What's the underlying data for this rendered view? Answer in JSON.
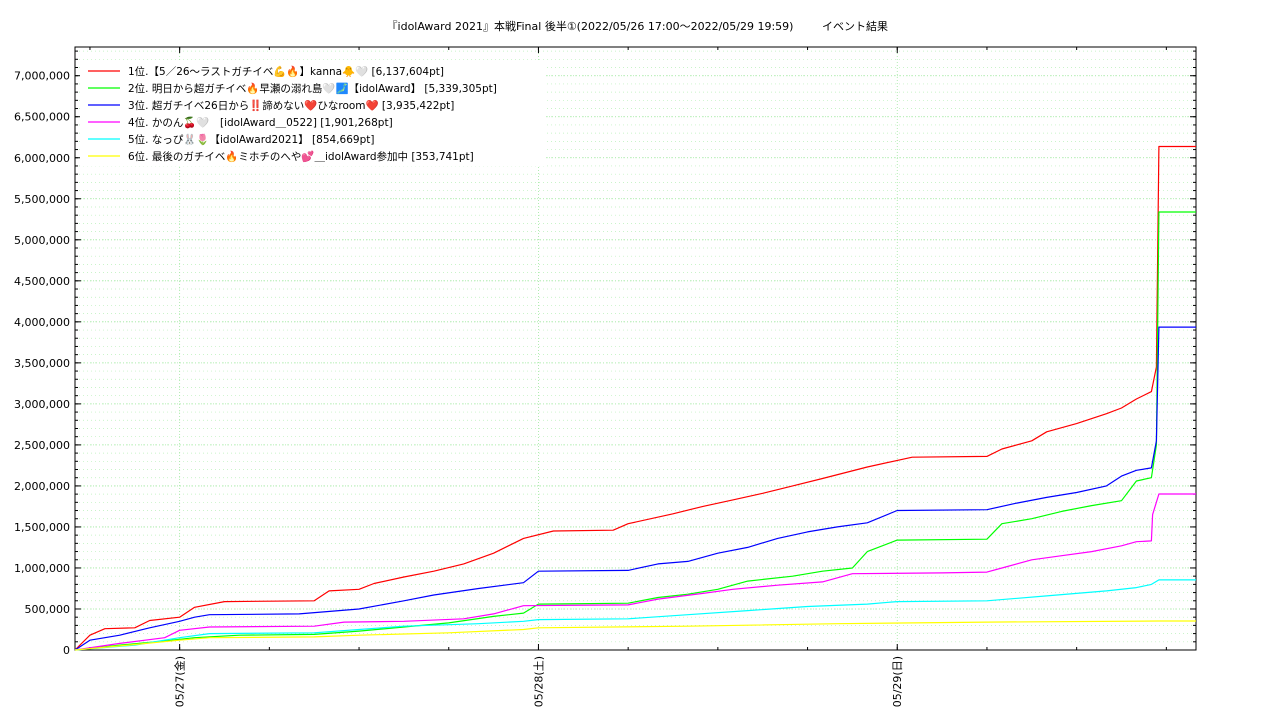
{
  "chart_data": {
    "type": "line",
    "title": "『idolAward 2021』本戦Final 後半①(2022/05/26 17:00～2022/05/29 19:59)",
    "subtitle": "イベント結果",
    "x_range": [
      "2022-05-26 17:00",
      "2022-05-29 19:59"
    ],
    "x_ticks": [
      {
        "t": "2022-05-27 00:00",
        "label": "05/27(金)"
      },
      {
        "t": "2022-05-28 00:00",
        "label": "05/28(土)"
      },
      {
        "t": "2022-05-29 00:00",
        "label": "05/29(日)"
      }
    ],
    "ylim": [
      0,
      7350000
    ],
    "y_ticks": [
      {
        "v": 0,
        "label": "0"
      },
      {
        "v": 500000,
        "label": "500,000"
      },
      {
        "v": 1000000,
        "label": "1,000,000"
      },
      {
        "v": 1500000,
        "label": "1,500,000"
      },
      {
        "v": 2000000,
        "label": "2,000,000"
      },
      {
        "v": 2500000,
        "label": "2,500,000"
      },
      {
        "v": 3000000,
        "label": "3,000,000"
      },
      {
        "v": 3500000,
        "label": "3,500,000"
      },
      {
        "v": 4000000,
        "label": "4,000,000"
      },
      {
        "v": 4500000,
        "label": "4,500,000"
      },
      {
        "v": 5000000,
        "label": "5,000,000"
      },
      {
        "v": 5500000,
        "label": "5,500,000"
      },
      {
        "v": 6000000,
        "label": "6,000,000"
      },
      {
        "v": 6500000,
        "label": "6,500,000"
      },
      {
        "v": 7000000,
        "label": "7,000,000"
      }
    ],
    "grid": true,
    "legend_position": "top-left",
    "series": [
      {
        "name": "1位.【5／26〜ラストガチイベ💪🔥】kanna🐥🤍 [6,137,604pt]",
        "color": "#ff0000",
        "points": [
          [
            "2022-05-26 17:00",
            0
          ],
          [
            "2022-05-26 18:00",
            180000
          ],
          [
            "2022-05-26 19:00",
            260000
          ],
          [
            "2022-05-26 21:00",
            270000
          ],
          [
            "2022-05-26 22:00",
            360000
          ],
          [
            "2022-05-27 00:00",
            400000
          ],
          [
            "2022-05-27 01:00",
            520000
          ],
          [
            "2022-05-27 03:00",
            590000
          ],
          [
            "2022-05-27 09:00",
            600000
          ],
          [
            "2022-05-27 10:00",
            720000
          ],
          [
            "2022-05-27 12:00",
            740000
          ],
          [
            "2022-05-27 13:00",
            810000
          ],
          [
            "2022-05-27 15:00",
            890000
          ],
          [
            "2022-05-27 17:00",
            960000
          ],
          [
            "2022-05-27 19:00",
            1050000
          ],
          [
            "2022-05-27 21:00",
            1180000
          ],
          [
            "2022-05-27 23:00",
            1360000
          ],
          [
            "2022-05-28 01:00",
            1450000
          ],
          [
            "2022-05-28 05:00",
            1460000
          ],
          [
            "2022-05-28 06:00",
            1540000
          ],
          [
            "2022-05-28 09:00",
            1660000
          ],
          [
            "2022-05-28 11:00",
            1750000
          ],
          [
            "2022-05-28 13:00",
            1830000
          ],
          [
            "2022-05-28 15:00",
            1910000
          ],
          [
            "2022-05-28 17:00",
            2000000
          ],
          [
            "2022-05-28 19:00",
            2090000
          ],
          [
            "2022-05-28 22:00",
            2230000
          ],
          [
            "2022-05-29 01:00",
            2350000
          ],
          [
            "2022-05-29 06:00",
            2360000
          ],
          [
            "2022-05-29 07:00",
            2450000
          ],
          [
            "2022-05-29 09:00",
            2550000
          ],
          [
            "2022-05-29 10:00",
            2660000
          ],
          [
            "2022-05-29 12:00",
            2760000
          ],
          [
            "2022-05-29 14:00",
            2880000
          ],
          [
            "2022-05-29 15:00",
            2950000
          ],
          [
            "2022-05-29 16:00",
            3060000
          ],
          [
            "2022-05-29 17:00",
            3150000
          ],
          [
            "2022-05-29 17:20",
            3450000
          ],
          [
            "2022-05-29 17:30",
            6137604
          ],
          [
            "2022-05-29 19:59",
            6137604
          ]
        ]
      },
      {
        "name": "2位. 明日から超ガチイベ🔥早瀬の溺れ島🤍🗾【idolAward】 [5,339,305pt]",
        "color": "#00ff00",
        "points": [
          [
            "2022-05-26 17:00",
            0
          ],
          [
            "2022-05-26 20:00",
            60000
          ],
          [
            "2022-05-26 23:00",
            110000
          ],
          [
            "2022-05-27 01:00",
            150000
          ],
          [
            "2022-05-27 04:00",
            180000
          ],
          [
            "2022-05-27 09:00",
            190000
          ],
          [
            "2022-05-27 12:00",
            230000
          ],
          [
            "2022-05-27 15:00",
            280000
          ],
          [
            "2022-05-27 18:00",
            330000
          ],
          [
            "2022-05-27 21:00",
            410000
          ],
          [
            "2022-05-27 23:00",
            450000
          ],
          [
            "2022-05-28 00:00",
            560000
          ],
          [
            "2022-05-28 06:00",
            570000
          ],
          [
            "2022-05-28 08:00",
            640000
          ],
          [
            "2022-05-28 10:00",
            680000
          ],
          [
            "2022-05-28 12:00",
            740000
          ],
          [
            "2022-05-28 14:00",
            840000
          ],
          [
            "2022-05-28 17:00",
            900000
          ],
          [
            "2022-05-28 19:00",
            960000
          ],
          [
            "2022-05-28 21:00",
            1000000
          ],
          [
            "2022-05-28 22:00",
            1200000
          ],
          [
            "2022-05-29 00:00",
            1340000
          ],
          [
            "2022-05-29 06:00",
            1350000
          ],
          [
            "2022-05-29 07:00",
            1540000
          ],
          [
            "2022-05-29 09:00",
            1600000
          ],
          [
            "2022-05-29 11:00",
            1690000
          ],
          [
            "2022-05-29 13:00",
            1760000
          ],
          [
            "2022-05-29 15:00",
            1820000
          ],
          [
            "2022-05-29 16:00",
            2060000
          ],
          [
            "2022-05-29 17:00",
            2100000
          ],
          [
            "2022-05-29 17:20",
            2500000
          ],
          [
            "2022-05-29 17:30",
            5339305
          ],
          [
            "2022-05-29 19:59",
            5339305
          ]
        ]
      },
      {
        "name": "3位. 超ガチイベ26日から‼️諦めない❤️ひなroom❤️ [3,935,422pt]",
        "color": "#0000ff",
        "points": [
          [
            "2022-05-26 17:00",
            0
          ],
          [
            "2022-05-26 18:00",
            120000
          ],
          [
            "2022-05-26 20:00",
            180000
          ],
          [
            "2022-05-26 22:00",
            270000
          ],
          [
            "2022-05-27 00:00",
            350000
          ],
          [
            "2022-05-27 01:00",
            400000
          ],
          [
            "2022-05-27 02:00",
            430000
          ],
          [
            "2022-05-27 08:00",
            440000
          ],
          [
            "2022-05-27 12:00",
            500000
          ],
          [
            "2022-05-27 15:00",
            600000
          ],
          [
            "2022-05-27 17:00",
            670000
          ],
          [
            "2022-05-27 20:00",
            750000
          ],
          [
            "2022-05-27 23:00",
            820000
          ],
          [
            "2022-05-28 00:00",
            960000
          ],
          [
            "2022-05-28 06:00",
            970000
          ],
          [
            "2022-05-28 08:00",
            1050000
          ],
          [
            "2022-05-28 10:00",
            1080000
          ],
          [
            "2022-05-28 12:00",
            1180000
          ],
          [
            "2022-05-28 14:00",
            1250000
          ],
          [
            "2022-05-28 16:00",
            1360000
          ],
          [
            "2022-05-28 18:00",
            1440000
          ],
          [
            "2022-05-28 20:00",
            1500000
          ],
          [
            "2022-05-28 22:00",
            1550000
          ],
          [
            "2022-05-29 00:00",
            1700000
          ],
          [
            "2022-05-29 06:00",
            1710000
          ],
          [
            "2022-05-29 08:00",
            1790000
          ],
          [
            "2022-05-29 10:00",
            1860000
          ],
          [
            "2022-05-29 12:00",
            1920000
          ],
          [
            "2022-05-29 14:00",
            2000000
          ],
          [
            "2022-05-29 15:00",
            2120000
          ],
          [
            "2022-05-29 16:00",
            2190000
          ],
          [
            "2022-05-29 17:00",
            2220000
          ],
          [
            "2022-05-29 17:20",
            2550000
          ],
          [
            "2022-05-29 17:30",
            3935422
          ],
          [
            "2022-05-29 19:59",
            3935422
          ]
        ]
      },
      {
        "name": "4位. かのん🍒🤍　[idolAward＿0522] [1,901,268pt]",
        "color": "#ff00ff",
        "points": [
          [
            "2022-05-26 17:00",
            0
          ],
          [
            "2022-05-26 20:00",
            80000
          ],
          [
            "2022-05-26 23:00",
            150000
          ],
          [
            "2022-05-27 00:00",
            240000
          ],
          [
            "2022-05-27 02:00",
            280000
          ],
          [
            "2022-05-27 09:00",
            290000
          ],
          [
            "2022-05-27 11:00",
            340000
          ],
          [
            "2022-05-27 15:00",
            350000
          ],
          [
            "2022-05-27 19:00",
            380000
          ],
          [
            "2022-05-27 21:00",
            440000
          ],
          [
            "2022-05-27 23:00",
            540000
          ],
          [
            "2022-05-28 06:00",
            550000
          ],
          [
            "2022-05-28 08:00",
            620000
          ],
          [
            "2022-05-28 11:00",
            690000
          ],
          [
            "2022-05-28 13:00",
            740000
          ],
          [
            "2022-05-28 16:00",
            790000
          ],
          [
            "2022-05-28 19:00",
            830000
          ],
          [
            "2022-05-28 21:00",
            930000
          ],
          [
            "2022-05-29 03:00",
            940000
          ],
          [
            "2022-05-29 06:00",
            950000
          ],
          [
            "2022-05-29 07:00",
            1000000
          ],
          [
            "2022-05-29 09:00",
            1100000
          ],
          [
            "2022-05-29 11:00",
            1150000
          ],
          [
            "2022-05-29 13:00",
            1200000
          ],
          [
            "2022-05-29 15:00",
            1270000
          ],
          [
            "2022-05-29 16:00",
            1320000
          ],
          [
            "2022-05-29 17:00",
            1330000
          ],
          [
            "2022-05-29 17:05",
            1650000
          ],
          [
            "2022-05-29 17:30",
            1901268
          ],
          [
            "2022-05-29 19:59",
            1901268
          ]
        ]
      },
      {
        "name": "5位. なっぴ🐰🌷【idolAward2021】 [854,669pt]",
        "color": "#00ffff",
        "points": [
          [
            "2022-05-26 17:00",
            0
          ],
          [
            "2022-05-26 21:00",
            60000
          ],
          [
            "2022-05-27 00:00",
            150000
          ],
          [
            "2022-05-27 02:00",
            200000
          ],
          [
            "2022-05-27 09:00",
            210000
          ],
          [
            "2022-05-27 12:00",
            250000
          ],
          [
            "2022-05-27 15:00",
            290000
          ],
          [
            "2022-05-27 20:00",
            320000
          ],
          [
            "2022-05-27 23:00",
            350000
          ],
          [
            "2022-05-28 00:00",
            370000
          ],
          [
            "2022-05-28 06:00",
            380000
          ],
          [
            "2022-05-28 10:00",
            430000
          ],
          [
            "2022-05-28 14:00",
            480000
          ],
          [
            "2022-05-28 18:00",
            530000
          ],
          [
            "2022-05-28 22:00",
            560000
          ],
          [
            "2022-05-29 00:00",
            590000
          ],
          [
            "2022-05-29 06:00",
            600000
          ],
          [
            "2022-05-29 10:00",
            660000
          ],
          [
            "2022-05-29 14:00",
            720000
          ],
          [
            "2022-05-29 16:00",
            760000
          ],
          [
            "2022-05-29 17:00",
            800000
          ],
          [
            "2022-05-29 17:30",
            854669
          ],
          [
            "2022-05-29 19:59",
            854669
          ]
        ]
      },
      {
        "name": "6位. 最後のガチイベ🔥ミホチのへや💕＿idolAward参加中 [353,741pt]",
        "color": "#ffff00",
        "points": [
          [
            "2022-05-26 17:00",
            0
          ],
          [
            "2022-05-26 20:00",
            50000
          ],
          [
            "2022-05-27 00:00",
            120000
          ],
          [
            "2022-05-27 02:00",
            150000
          ],
          [
            "2022-05-27 09:00",
            160000
          ],
          [
            "2022-05-27 12:00",
            180000
          ],
          [
            "2022-05-27 18:00",
            210000
          ],
          [
            "2022-05-27 23:00",
            250000
          ],
          [
            "2022-05-28 00:00",
            270000
          ],
          [
            "2022-05-28 10:00",
            290000
          ],
          [
            "2022-05-28 20:00",
            320000
          ],
          [
            "2022-05-29 06:00",
            340000
          ],
          [
            "2022-05-29 17:30",
            353741
          ],
          [
            "2022-05-29 19:59",
            353741
          ]
        ]
      }
    ]
  }
}
